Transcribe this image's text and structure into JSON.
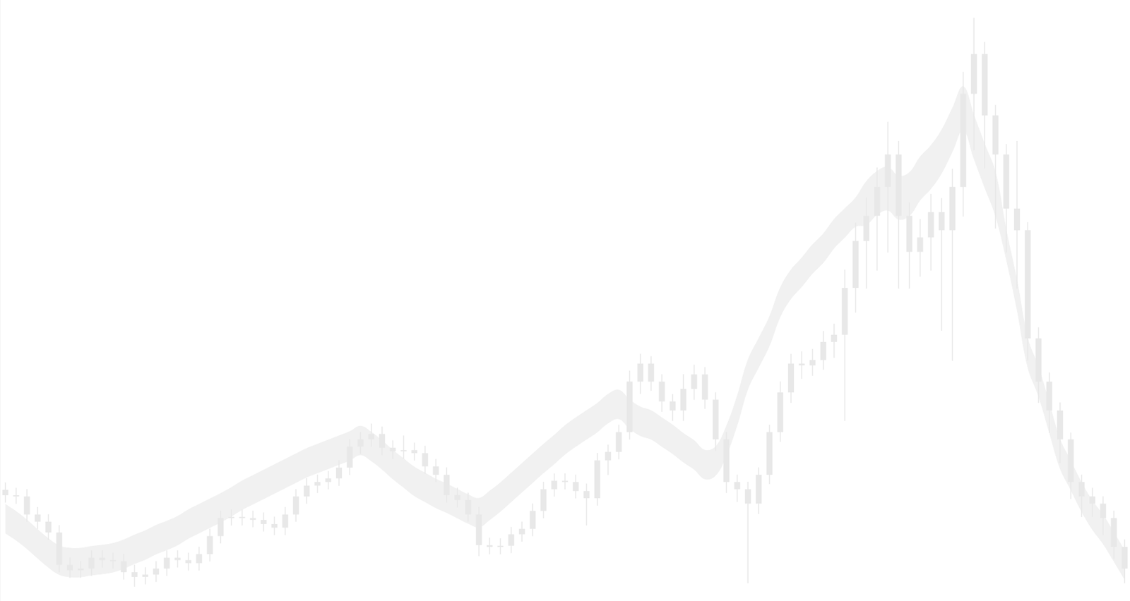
{
  "chart_data": {
    "type": "candlestick",
    "categories": [
      null,
      null,
      null,
      null,
      null,
      null,
      null,
      null,
      null,
      null,
      null,
      null,
      null,
      null,
      null,
      null,
      null,
      null,
      null,
      null,
      null,
      null,
      null,
      null,
      null,
      null,
      null,
      null,
      null,
      null,
      null,
      null,
      null,
      null,
      null,
      null,
      null,
      null,
      null,
      null,
      null,
      null,
      null,
      null,
      null,
      null,
      null,
      null,
      null,
      null,
      null,
      null,
      null,
      null,
      null,
      null,
      null,
      null,
      null,
      null,
      null,
      null,
      null,
      null,
      null,
      null,
      null,
      null,
      null,
      null,
      null,
      null,
      null,
      null,
      null,
      null,
      null,
      null,
      null,
      null,
      null,
      null,
      null,
      null,
      null,
      null,
      null,
      null,
      null,
      null,
      null,
      null,
      null,
      null,
      null,
      null,
      null,
      null,
      null,
      null,
      null,
      null,
      null,
      null,
      null
    ],
    "open": [
      18.5,
      17.6,
      17.4,
      14.4,
      13.2,
      11.4,
      6.0,
      5.1,
      5.4,
      7.2,
      6.8,
      6.6,
      4.8,
      4.0,
      4.4,
      5.4,
      7.2,
      6.8,
      6.3,
      7.8,
      10.8,
      13.8,
      14.0,
      13.8,
      13.5,
      12.8,
      12.2,
      14.4,
      17.4,
      19.2,
      19.8,
      20.4,
      22.2,
      25.7,
      26.9,
      27.8,
      25.5,
      24.9,
      25.1,
      24.6,
      22.4,
      21.0,
      17.6,
      16.8,
      14.4,
      9.3,
      9.0,
      9.2,
      11.1,
      12.0,
      15.0,
      18.6,
      20.0,
      19.8,
      18.3,
      17.1,
      23.4,
      24.8,
      28.1,
      36.5,
      39.5,
      36.5,
      33.2,
      31.7,
      35.3,
      37.7,
      33.5,
      26.9,
      19.8,
      18.6,
      16.2,
      21.0,
      28.1,
      34.7,
      39.5,
      39.2,
      40.1,
      43.1,
      44.3,
      52.1,
      59.9,
      64.1,
      68.9,
      74.3,
      64.1,
      58.1,
      60.5,
      64.7,
      61.7,
      68.9,
      84.4,
      91.0,
      80.8,
      74.3,
      65.3,
      61.7,
      43.7,
      36.5,
      31.7,
      26.9,
      19.8,
      17.4,
      16.2,
      13.8,
      9.0
    ],
    "high": [
      19.7,
      18.8,
      18.6,
      15.6,
      14.4,
      12.6,
      7.2,
      6.6,
      8.4,
      8.4,
      8.0,
      7.8,
      6.0,
      5.6,
      6.6,
      8.4,
      8.4,
      8.0,
      9.0,
      12.0,
      15.0,
      15.2,
      15.2,
      15.0,
      14.7,
      14.0,
      15.6,
      18.6,
      20.4,
      21.0,
      21.6,
      23.4,
      26.9,
      28.1,
      29.5,
      29.0,
      26.7,
      27.5,
      26.3,
      25.8,
      23.6,
      22.2,
      18.8,
      18.0,
      15.6,
      10.5,
      10.4,
      12.3,
      13.2,
      16.2,
      19.8,
      21.2,
      21.2,
      21.0,
      19.5,
      24.6,
      26.0,
      29.3,
      38.3,
      41.1,
      40.7,
      37.7,
      34.4,
      37.7,
      39.3,
      38.9,
      34.7,
      28.1,
      21.0,
      19.8,
      22.2,
      29.3,
      36.5,
      41.1,
      41.5,
      41.9,
      44.9,
      46.1,
      55.1,
      62.9,
      67.1,
      72.1,
      79.7,
      76.5,
      66.3,
      63.5,
      67.7,
      67.0,
      71.9,
      88.0,
      97.0,
      93.0,
      82.5,
      76.0,
      76.5,
      63.0,
      45.5,
      38.0,
      33.0,
      28.0,
      21.0,
      18.8,
      17.4,
      15.0,
      10.2
    ],
    "low": [
      16.4,
      16.2,
      13.2,
      12.0,
      10.2,
      4.8,
      3.9,
      3.9,
      4.2,
      5.6,
      5.4,
      3.6,
      2.4,
      2.8,
      3.2,
      4.2,
      5.6,
      5.1,
      5.1,
      6.6,
      9.6,
      12.6,
      12.6,
      12.3,
      11.6,
      11.0,
      11.0,
      13.2,
      16.2,
      18.0,
      18.6,
      19.2,
      21.0,
      24.5,
      25.7,
      24.3,
      23.7,
      23.7,
      23.4,
      21.2,
      19.8,
      16.4,
      15.6,
      13.2,
      7.5,
      7.8,
      7.8,
      8.0,
      9.9,
      10.8,
      13.8,
      17.4,
      18.6,
      17.1,
      12.6,
      15.9,
      21.0,
      23.6,
      26.9,
      34.5,
      35.0,
      31.5,
      30.0,
      30.0,
      33.5,
      32.0,
      25.0,
      18.0,
      16.5,
      3.0,
      14.5,
      19.5,
      26.5,
      33.0,
      37.0,
      37.5,
      38.5,
      40.5,
      30.0,
      48.0,
      52.0,
      55.0,
      58.0,
      52.0,
      52.0,
      54.0,
      55.0,
      45.0,
      40.0,
      64.0,
      75.0,
      72.0,
      62.0,
      58.0,
      52.0,
      40.0,
      33.0,
      28.0,
      23.0,
      17.0,
      14.0,
      14.0,
      11.0,
      7.0,
      3.0
    ],
    "close": [
      17.6,
      17.4,
      14.4,
      13.2,
      11.4,
      6.0,
      5.1,
      5.4,
      7.2,
      6.8,
      6.6,
      4.8,
      4.0,
      4.4,
      5.4,
      7.2,
      6.8,
      6.3,
      7.8,
      10.8,
      13.8,
      14.0,
      13.8,
      13.5,
      12.8,
      12.2,
      14.4,
      17.4,
      19.2,
      19.8,
      20.4,
      22.2,
      25.7,
      26.9,
      27.8,
      25.5,
      24.9,
      25.1,
      24.6,
      22.4,
      21.0,
      17.6,
      16.8,
      14.4,
      9.3,
      9.0,
      9.2,
      11.1,
      12.0,
      15.0,
      18.6,
      20.0,
      19.8,
      18.3,
      17.1,
      23.4,
      24.8,
      28.1,
      36.5,
      39.5,
      36.5,
      33.2,
      31.7,
      35.3,
      37.7,
      33.5,
      26.9,
      19.8,
      18.6,
      16.2,
      21.0,
      28.1,
      34.7,
      39.5,
      39.2,
      40.1,
      43.1,
      44.3,
      52.1,
      59.9,
      64.1,
      68.9,
      74.3,
      64.1,
      58.1,
      60.5,
      64.7,
      61.7,
      68.9,
      84.4,
      91.0,
      80.8,
      74.3,
      65.3,
      61.7,
      43.7,
      36.5,
      31.7,
      26.9,
      19.8,
      17.4,
      16.2,
      13.8,
      9.0,
      5.4
    ],
    "color": "#e8e8e8",
    "series": [
      {
        "type": "line",
        "color": "#f1f1f1",
        "values": [
          16.1,
          14.9,
          13.5,
          11.9,
          10.4,
          9.2,
          8.8,
          8.8,
          9.1,
          9.3,
          9.6,
          10.2,
          11.0,
          11.7,
          12.6,
          13.3,
          14.1,
          15.2,
          16.1,
          17.0,
          17.9,
          18.9,
          20.0,
          20.9,
          21.8,
          22.7,
          23.6,
          24.5,
          25.4,
          26.1,
          26.8,
          27.5,
          28.2,
          29.1,
          28.1,
          26.7,
          25.1,
          23.7,
          22.3,
          21.3,
          20.3,
          19.5,
          18.6,
          17.7,
          17.1,
          18.3,
          19.7,
          21.3,
          22.9,
          24.5,
          26.1,
          27.6,
          29.2,
          30.5,
          31.7,
          32.9,
          34.4,
          35.1,
          33.5,
          32.3,
          31.7,
          30.5,
          29.3,
          27.9,
          26.7,
          25.1,
          25.7,
          29.1,
          34.1,
          40.1,
          43.7,
          47.3,
          52.1,
          55.1,
          57.1,
          59.3,
          61.1,
          63.5,
          65.3,
          67.1,
          69.8,
          71.5,
          72.2,
          70.7,
          71.3,
          73.9,
          75.8,
          78.4,
          82.0,
          85.6,
          80.8,
          76.0,
          71.3,
          61.7,
          53.3,
          43.7,
          38.9,
          32.9,
          26.9,
          23.3,
          19.7,
          16.7,
          14.3,
          11.4,
          8.4
        ]
      },
      {
        "type": "line",
        "color": "#f1f1f1",
        "values": [
          11.3,
          10.1,
          8.7,
          7.1,
          5.6,
          4.4,
          4.0,
          4.0,
          4.3,
          4.5,
          4.8,
          5.4,
          6.2,
          6.9,
          7.8,
          8.5,
          9.3,
          10.4,
          11.3,
          12.2,
          13.1,
          14.1,
          15.2,
          16.1,
          17.0,
          17.9,
          18.8,
          19.7,
          20.6,
          21.3,
          22.0,
          22.7,
          23.4,
          24.3,
          23.3,
          21.9,
          20.3,
          18.9,
          17.5,
          16.5,
          15.5,
          14.7,
          13.8,
          12.9,
          12.3,
          13.5,
          14.9,
          16.5,
          18.1,
          19.7,
          21.3,
          22.8,
          24.4,
          25.7,
          26.9,
          28.1,
          29.6,
          30.3,
          28.7,
          27.5,
          26.9,
          25.7,
          24.5,
          23.1,
          21.9,
          20.3,
          20.9,
          24.3,
          29.3,
          35.3,
          38.9,
          42.5,
          47.3,
          50.3,
          52.3,
          54.5,
          56.3,
          58.7,
          60.5,
          62.3,
          62.6,
          64.3,
          65.0,
          63.5,
          64.1,
          66.7,
          68.6,
          71.2,
          74.8,
          78.4,
          73.6,
          68.8,
          64.1,
          56.9,
          48.5,
          38.9,
          34.1,
          28.1,
          22.1,
          18.5,
          14.9,
          11.9,
          9.5,
          6.6,
          3.6
        ]
      }
    ],
    "ylim": [
      0,
      100
    ],
    "yticks": [],
    "grid": false,
    "tick_labels": false
  }
}
